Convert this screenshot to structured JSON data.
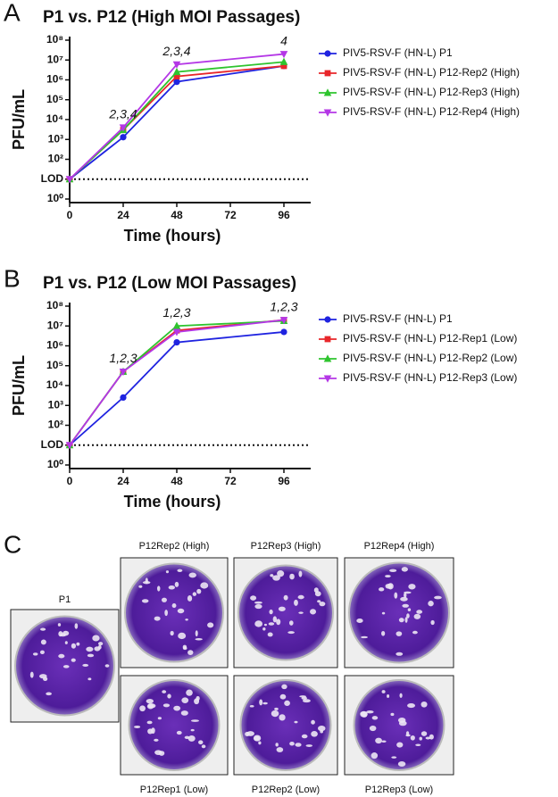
{
  "chart_data": [
    {
      "type": "line",
      "panel_label": "A",
      "title": "P1 vs. P12 (High MOI Passages)",
      "x_label": "Time (hours)",
      "y_label": "PFU/mL",
      "y_scale": "log",
      "x": [
        0,
        24,
        48,
        96
      ],
      "xlim": [
        0,
        108
      ],
      "xticks": [
        0,
        24,
        48,
        72,
        96
      ],
      "ylim": [
        1,
        100000000
      ],
      "yticks": [
        {
          "value": 1,
          "label": "10⁰"
        },
        {
          "value": 10,
          "label": "LOD"
        },
        {
          "value": 100,
          "label": "10²"
        },
        {
          "value": 1000,
          "label": "10³"
        },
        {
          "value": 10000,
          "label": "10⁴"
        },
        {
          "value": 100000,
          "label": "10⁵"
        },
        {
          "value": 1000000,
          "label": "10⁶"
        },
        {
          "value": 10000000,
          "label": "10⁷"
        },
        {
          "value": 100000000,
          "label": "10⁸"
        }
      ],
      "reference_line": 10,
      "series": [
        {
          "name": "PIV5-RSV-F (HN-L) P1",
          "color": "#1f23e0",
          "marker": "circle",
          "values": [
            10,
            1300,
            800000,
            5000000
          ]
        },
        {
          "name": "PIV5-RSV-F (HN-L) P12-Rep2 (High)",
          "color": "#e8262a",
          "marker": "square",
          "values": [
            10,
            3000,
            1500000,
            5000000
          ]
        },
        {
          "name": "PIV5-RSV-F (HN-L) P12-Rep3 (High)",
          "color": "#2ec42e",
          "marker": "triangle-up",
          "values": [
            10,
            3000,
            2500000,
            8000000
          ]
        },
        {
          "name": "PIV5-RSV-F (HN-L) P12-Rep4 (High)",
          "color": "#b437e6",
          "marker": "triangle-down",
          "values": [
            10,
            4000,
            6000000,
            20000000
          ]
        }
      ],
      "annotations": [
        {
          "text": "2,3,4",
          "x": 24
        },
        {
          "text": "2,3,4",
          "x": 48
        },
        {
          "text": "4",
          "x": 96
        }
      ]
    },
    {
      "type": "line",
      "panel_label": "B",
      "title": "P1 vs. P12 (Low MOI Passages)",
      "x_label": "Time (hours)",
      "y_label": "PFU/mL",
      "y_scale": "log",
      "x": [
        0,
        24,
        48,
        96
      ],
      "xlim": [
        0,
        108
      ],
      "xticks": [
        0,
        24,
        48,
        72,
        96
      ],
      "ylim": [
        1,
        100000000
      ],
      "yticks": [
        {
          "value": 1,
          "label": "10⁰"
        },
        {
          "value": 10,
          "label": "LOD"
        },
        {
          "value": 100,
          "label": "10²"
        },
        {
          "value": 1000,
          "label": "10³"
        },
        {
          "value": 10000,
          "label": "10⁴"
        },
        {
          "value": 100000,
          "label": "10⁵"
        },
        {
          "value": 1000000,
          "label": "10⁶"
        },
        {
          "value": 10000000,
          "label": "10⁷"
        },
        {
          "value": 100000000,
          "label": "10⁸"
        }
      ],
      "reference_line": 10,
      "series": [
        {
          "name": "PIV5-RSV-F (HN-L) P1",
          "color": "#1f23e0",
          "marker": "circle",
          "values": [
            10,
            2500,
            1500000,
            5000000
          ]
        },
        {
          "name": "PIV5-RSV-F (HN-L) P12-Rep1 (Low)",
          "color": "#e8262a",
          "marker": "square",
          "values": [
            10,
            50000,
            6000000,
            20000000
          ]
        },
        {
          "name": "PIV5-RSV-F (HN-L) P12-Rep2 (Low)",
          "color": "#2ec42e",
          "marker": "triangle-up",
          "values": [
            10,
            50000,
            10000000,
            18000000
          ]
        },
        {
          "name": "PIV5-RSV-F (HN-L) P12-Rep3 (Low)",
          "color": "#b437e6",
          "marker": "triangle-down",
          "values": [
            10,
            50000,
            5000000,
            20000000
          ]
        }
      ],
      "annotations": [
        {
          "text": "1,2,3",
          "x": 24
        },
        {
          "text": "1,2,3",
          "x": 48
        },
        {
          "text": "1,2,3",
          "x": 96
        }
      ]
    }
  ],
  "panel_c": {
    "panel_label": "C",
    "plates": [
      "P1",
      "P12Rep2 (High)",
      "P12Rep3 (High)",
      "P12Rep4 (High)",
      "P12Rep1 (Low)",
      "P12Rep2 (Low)",
      "P12Rep3 (Low)"
    ]
  }
}
